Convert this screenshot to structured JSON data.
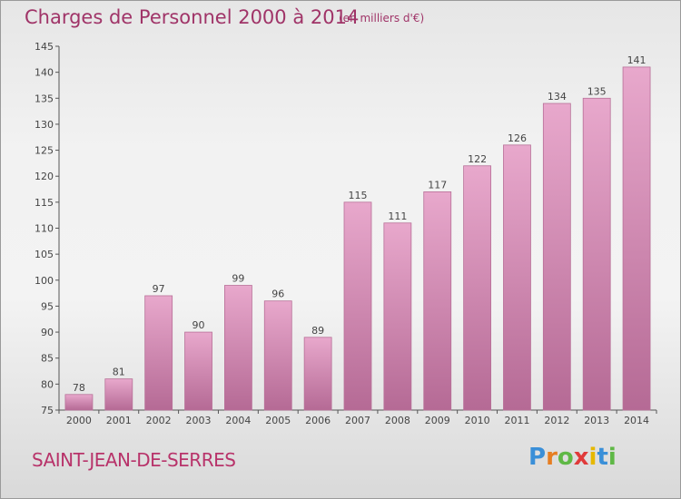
{
  "header": {
    "title": "Charges de Personnel 2000 à 2014",
    "subtitle": "(en milliers d'€)"
  },
  "footer": {
    "commune": "SAINT-JEAN-DE-SERRES",
    "logo": {
      "letters": [
        "P",
        "r",
        "o",
        "x",
        "i",
        "t",
        "i"
      ],
      "colors": [
        "#3a8fd8",
        "#e67e22",
        "#5fb846",
        "#e03a3a",
        "#e6b800",
        "#3a8fd8",
        "#5fb846"
      ]
    }
  },
  "colors": {
    "bar_top": "#e8a8cc",
    "bar_bottom": "#b56a95",
    "bar_edge": "#b87098",
    "text": "#444444",
    "accent": "#a03468"
  },
  "chart_data": {
    "type": "bar",
    "title": "Charges de Personnel 2000 à 2014",
    "subtitle": "(en milliers d'€)",
    "categories": [
      "2000",
      "2001",
      "2002",
      "2003",
      "2004",
      "2005",
      "2006",
      "2007",
      "2008",
      "2009",
      "2010",
      "2011",
      "2012",
      "2013",
      "2014"
    ],
    "values": [
      78,
      81,
      97,
      90,
      99,
      96,
      89,
      115,
      111,
      117,
      122,
      126,
      134,
      135,
      141
    ],
    "ylim": [
      75,
      145
    ],
    "yticks": [
      75,
      80,
      85,
      90,
      95,
      100,
      105,
      110,
      115,
      120,
      125,
      130,
      135,
      140,
      145
    ],
    "grid": false,
    "data_labels": true
  }
}
